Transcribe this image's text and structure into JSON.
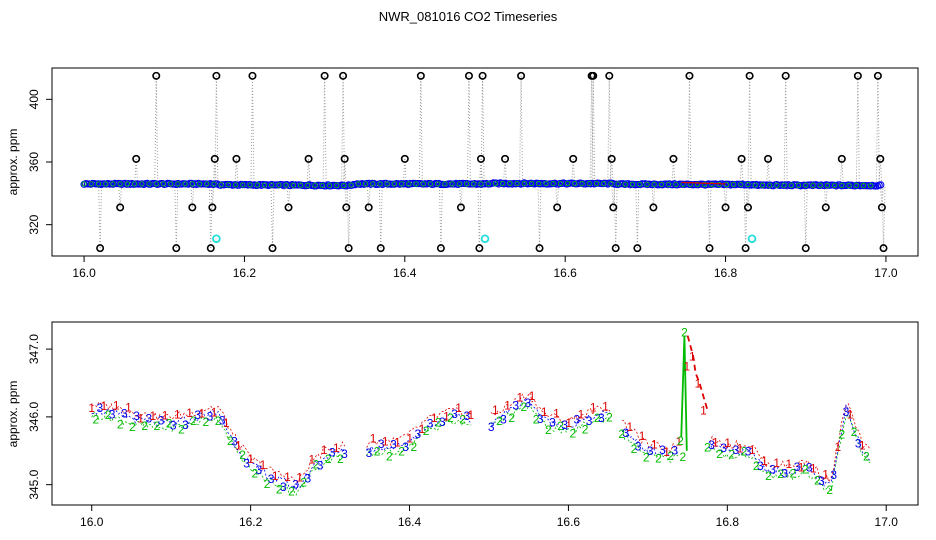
{
  "title": "NWR_081016  CO2 Timeseries",
  "chart_data": [
    {
      "type": "line",
      "panel": "top",
      "ylabel": "approx. ppm",
      "xlim": [
        15.96,
        17.04
      ],
      "ylim": [
        300,
        420
      ],
      "xticks": [
        "16.0",
        "16.2",
        "16.4",
        "16.6",
        "16.8",
        "17.0"
      ],
      "xtick_values": [
        16.0,
        16.2,
        16.4,
        16.6,
        16.8,
        17.0
      ],
      "yticks": [
        "320",
        "360",
        "400"
      ],
      "ytick_values": [
        320,
        360,
        400
      ],
      "baseline_series": {
        "name": "",
        "x": [
          16.0,
          16.16,
          16.17,
          16.33,
          16.34,
          16.5,
          16.51,
          16.66,
          16.67,
          16.83,
          16.84,
          16.99
        ],
        "y": [
          346,
          346,
          345.5,
          345,
          346,
          346,
          346.3,
          346.2,
          345.8,
          345.6,
          345.2,
          345
        ]
      },
      "spikes": [
        {
          "x": 16.02,
          "y": 305
        },
        {
          "x": 16.045,
          "y": 331
        },
        {
          "x": 16.065,
          "y": 362
        },
        {
          "x": 16.09,
          "y": 415
        },
        {
          "x": 16.115,
          "y": 305
        },
        {
          "x": 16.135,
          "y": 331
        },
        {
          "x": 16.158,
          "y": 305
        },
        {
          "x": 16.16,
          "y": 331
        },
        {
          "x": 16.163,
          "y": 362
        },
        {
          "x": 16.165,
          "y": 415
        },
        {
          "x": 16.19,
          "y": 362
        },
        {
          "x": 16.21,
          "y": 415
        },
        {
          "x": 16.235,
          "y": 305
        },
        {
          "x": 16.255,
          "y": 331
        },
        {
          "x": 16.28,
          "y": 362
        },
        {
          "x": 16.3,
          "y": 415
        },
        {
          "x": 16.323,
          "y": 415
        },
        {
          "x": 16.325,
          "y": 362
        },
        {
          "x": 16.327,
          "y": 331
        },
        {
          "x": 16.33,
          "y": 305
        },
        {
          "x": 16.355,
          "y": 331
        },
        {
          "x": 16.37,
          "y": 305
        },
        {
          "x": 16.4,
          "y": 362
        },
        {
          "x": 16.42,
          "y": 415
        },
        {
          "x": 16.445,
          "y": 305
        },
        {
          "x": 16.47,
          "y": 331
        },
        {
          "x": 16.48,
          "y": 415
        },
        {
          "x": 16.493,
          "y": 305
        },
        {
          "x": 16.495,
          "y": 362
        },
        {
          "x": 16.497,
          "y": 415
        },
        {
          "x": 16.525,
          "y": 362
        },
        {
          "x": 16.545,
          "y": 415
        },
        {
          "x": 16.568,
          "y": 305
        },
        {
          "x": 16.59,
          "y": 331
        },
        {
          "x": 16.61,
          "y": 362
        },
        {
          "x": 16.633,
          "y": 415
        },
        {
          "x": 16.635,
          "y": 415
        },
        {
          "x": 16.655,
          "y": 415
        },
        {
          "x": 16.658,
          "y": 362
        },
        {
          "x": 16.66,
          "y": 331
        },
        {
          "x": 16.663,
          "y": 305
        },
        {
          "x": 16.69,
          "y": 305
        },
        {
          "x": 16.71,
          "y": 331
        },
        {
          "x": 16.735,
          "y": 362
        },
        {
          "x": 16.755,
          "y": 415
        },
        {
          "x": 16.78,
          "y": 305
        },
        {
          "x": 16.8,
          "y": 331
        },
        {
          "x": 16.82,
          "y": 362
        },
        {
          "x": 16.825,
          "y": 305
        },
        {
          "x": 16.828,
          "y": 331
        },
        {
          "x": 16.83,
          "y": 415
        },
        {
          "x": 16.853,
          "y": 362
        },
        {
          "x": 16.875,
          "y": 415
        },
        {
          "x": 16.9,
          "y": 305
        },
        {
          "x": 16.925,
          "y": 331
        },
        {
          "x": 16.945,
          "y": 362
        },
        {
          "x": 16.965,
          "y": 415
        },
        {
          "x": 16.99,
          "y": 415
        },
        {
          "x": 16.993,
          "y": 362
        },
        {
          "x": 16.995,
          "y": 331
        },
        {
          "x": 16.997,
          "y": 305
        }
      ],
      "cyan_points": [
        {
          "x": 16.165,
          "y": 311
        },
        {
          "x": 16.5,
          "y": 311
        },
        {
          "x": 16.833,
          "y": 311
        }
      ],
      "colors": {
        "line": "#000000",
        "grey": "#9a9a9a",
        "blue": "#0000ee",
        "green": "#00bb00",
        "red": "#dd0000",
        "cyan": "#22dddd"
      }
    },
    {
      "type": "line",
      "panel": "bottom",
      "ylabel": "approx. ppm",
      "xlim": [
        15.95,
        17.04
      ],
      "ylim": [
        344.7,
        347.4
      ],
      "xticks": [
        "16.0",
        "16.2",
        "16.4",
        "16.6",
        "16.8",
        "17.0"
      ],
      "xtick_values": [
        16.0,
        16.2,
        16.4,
        16.6,
        16.8,
        17.0
      ],
      "yticks": [
        "345.0",
        "346.0",
        "347.0"
      ],
      "ytick_values": [
        345.0,
        346.0,
        347.0
      ],
      "series_labels": [
        "1",
        "2",
        "3"
      ],
      "trend": {
        "x": [
          16.0,
          16.03,
          16.06,
          16.09,
          16.12,
          16.15,
          16.16,
          16.18,
          16.2,
          16.22,
          16.25,
          16.26,
          16.28,
          16.3,
          16.32,
          16.34,
          16.36,
          16.38,
          16.4,
          16.42,
          16.45,
          16.48,
          16.5,
          16.52,
          16.55,
          16.57,
          16.6,
          16.63,
          16.65,
          16.67,
          16.7,
          16.73,
          16.75,
          16.77,
          16.8,
          16.83,
          16.85,
          16.88,
          16.9,
          16.93,
          16.95,
          16.97,
          16.98
        ],
        "y": [
          346.1,
          346.05,
          345.95,
          345.9,
          345.95,
          346.05,
          346.05,
          345.6,
          345.3,
          345.15,
          345.0,
          344.95,
          345.3,
          345.45,
          345.5,
          345.5,
          345.55,
          345.55,
          345.65,
          345.85,
          346.0,
          345.95,
          345.9,
          346.05,
          346.25,
          345.95,
          345.85,
          346.0,
          346.05,
          345.8,
          345.5,
          345.45,
          345.55,
          345.6,
          345.5,
          345.5,
          345.2,
          345.2,
          345.25,
          344.95,
          346.15,
          345.5,
          345.4
        ]
      },
      "green_spike": {
        "x": [
          16.742,
          16.746,
          16.749
        ],
        "y": [
          345.7,
          347.2,
          345.5
        ]
      },
      "red_dash": {
        "x": [
          16.75,
          16.757,
          16.76,
          16.765,
          16.775
        ],
        "y": [
          347.2,
          346.9,
          346.65,
          346.5,
          346.1
        ]
      },
      "colors": {
        "c1": "#dd0000",
        "c2": "#00bb00",
        "c3": "#0000ee"
      }
    }
  ]
}
